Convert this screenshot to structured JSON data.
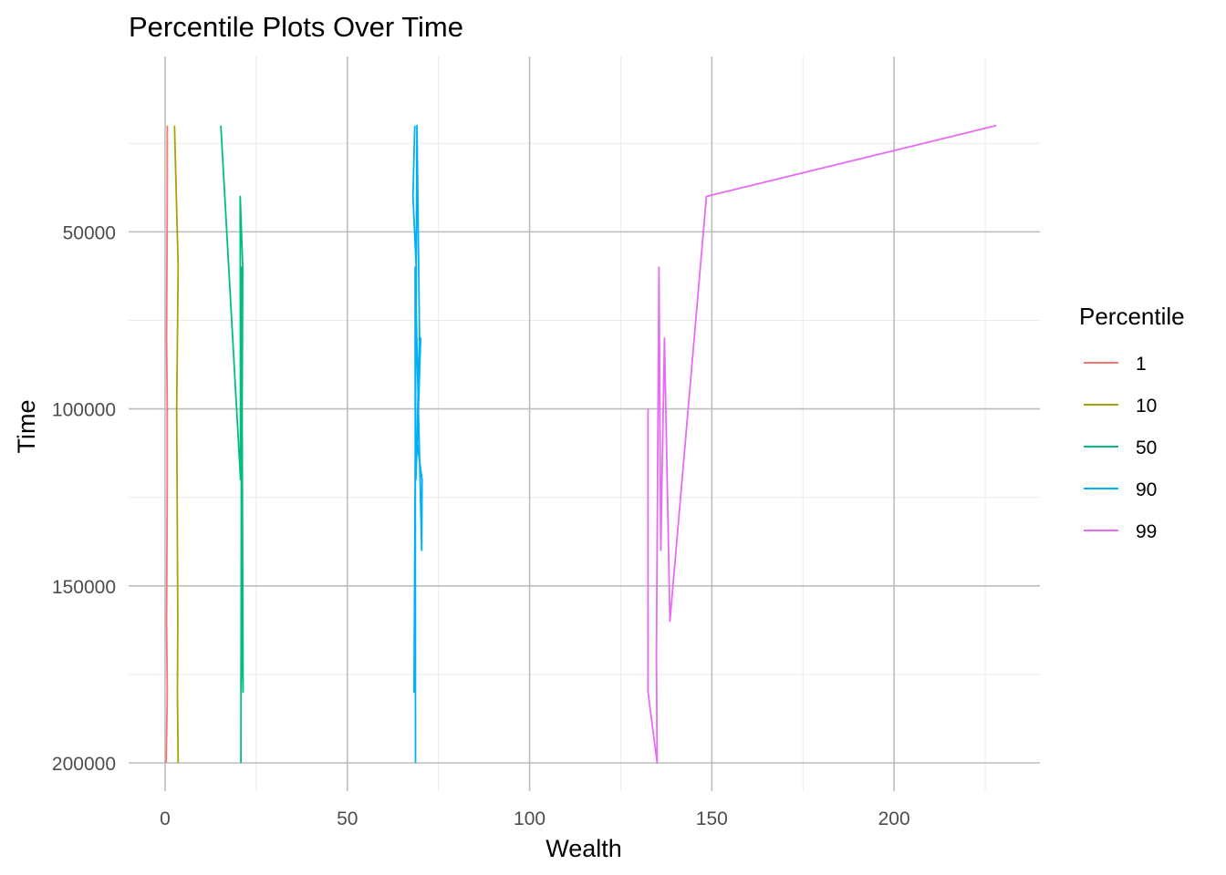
{
  "chart_data": {
    "type": "line",
    "title": "Percentile Plots Over Time",
    "xlabel": "Wealth",
    "ylabel": "Time",
    "xlim": [
      -10,
      240
    ],
    "ylim": [
      200000,
      10000
    ],
    "y_reversed": true,
    "x_ticks": [
      0,
      50,
      100,
      150,
      200
    ],
    "x_tick_labels": [
      "0",
      "50",
      "100",
      "150",
      "200"
    ],
    "x_minor_ticks": [
      25,
      75,
      125,
      175,
      225
    ],
    "y_ticks": [
      50000,
      100000,
      150000,
      200000
    ],
    "y_tick_labels": [
      "50000",
      "100000",
      "150000",
      "200000"
    ],
    "y_minor_ticks": [
      25000,
      75000,
      125000,
      175000
    ],
    "grid": true,
    "legend": {
      "title": "Percentile",
      "placement": "right"
    },
    "series": [
      {
        "name": "1",
        "color": "#F8766D",
        "points": [
          [
            0.6,
            20000
          ],
          [
            0.6,
            40000
          ],
          [
            0.5,
            60000
          ],
          [
            0.4,
            80000
          ],
          [
            0.6,
            100000
          ],
          [
            0.6,
            120000
          ],
          [
            0.5,
            140000
          ],
          [
            0.4,
            160000
          ],
          [
            0.6,
            180000
          ],
          [
            0.3,
            200000
          ]
        ]
      },
      {
        "name": "10",
        "color": "#A3A500",
        "points": [
          [
            2.6,
            20000
          ],
          [
            3.1,
            40000
          ],
          [
            3.6,
            60000
          ],
          [
            3.4,
            80000
          ],
          [
            3.2,
            100000
          ],
          [
            3.3,
            120000
          ],
          [
            3.4,
            140000
          ],
          [
            3.5,
            160000
          ],
          [
            3.4,
            180000
          ],
          [
            3.6,
            200000
          ]
        ]
      },
      {
        "name": "50",
        "color": "#00BF7D",
        "points": [
          [
            15.3,
            20000
          ],
          [
            20.7,
            120000
          ],
          [
            20.6,
            40000
          ],
          [
            21.3,
            60000
          ],
          [
            20.8,
            180000
          ],
          [
            21.1,
            160000
          ],
          [
            21.4,
            180000
          ],
          [
            21.0,
            60000
          ],
          [
            20.8,
            200000
          ]
        ]
      },
      {
        "name": "90",
        "color": "#00B0F6",
        "points": [
          [
            68.5,
            20000
          ],
          [
            68.0,
            40000
          ],
          [
            68.9,
            60000
          ],
          [
            68.3,
            180000
          ],
          [
            69.1,
            20000
          ],
          [
            69.8,
            80000
          ],
          [
            68.8,
            120000
          ],
          [
            70.1,
            80000
          ],
          [
            69.2,
            110000
          ],
          [
            70.5,
            120000
          ],
          [
            70.4,
            140000
          ],
          [
            68.6,
            60000
          ],
          [
            68.7,
            200000
          ]
        ]
      },
      {
        "name": "99",
        "color": "#E76BF3",
        "points": [
          [
            228.0,
            20000
          ],
          [
            148.5,
            40000
          ],
          [
            138.5,
            160000
          ],
          [
            137.0,
            80000
          ],
          [
            136.0,
            140000
          ],
          [
            135.5,
            60000
          ],
          [
            134.8,
            170000
          ],
          [
            135.0,
            200000
          ],
          [
            132.5,
            180000
          ],
          [
            132.5,
            100000
          ]
        ]
      }
    ]
  }
}
